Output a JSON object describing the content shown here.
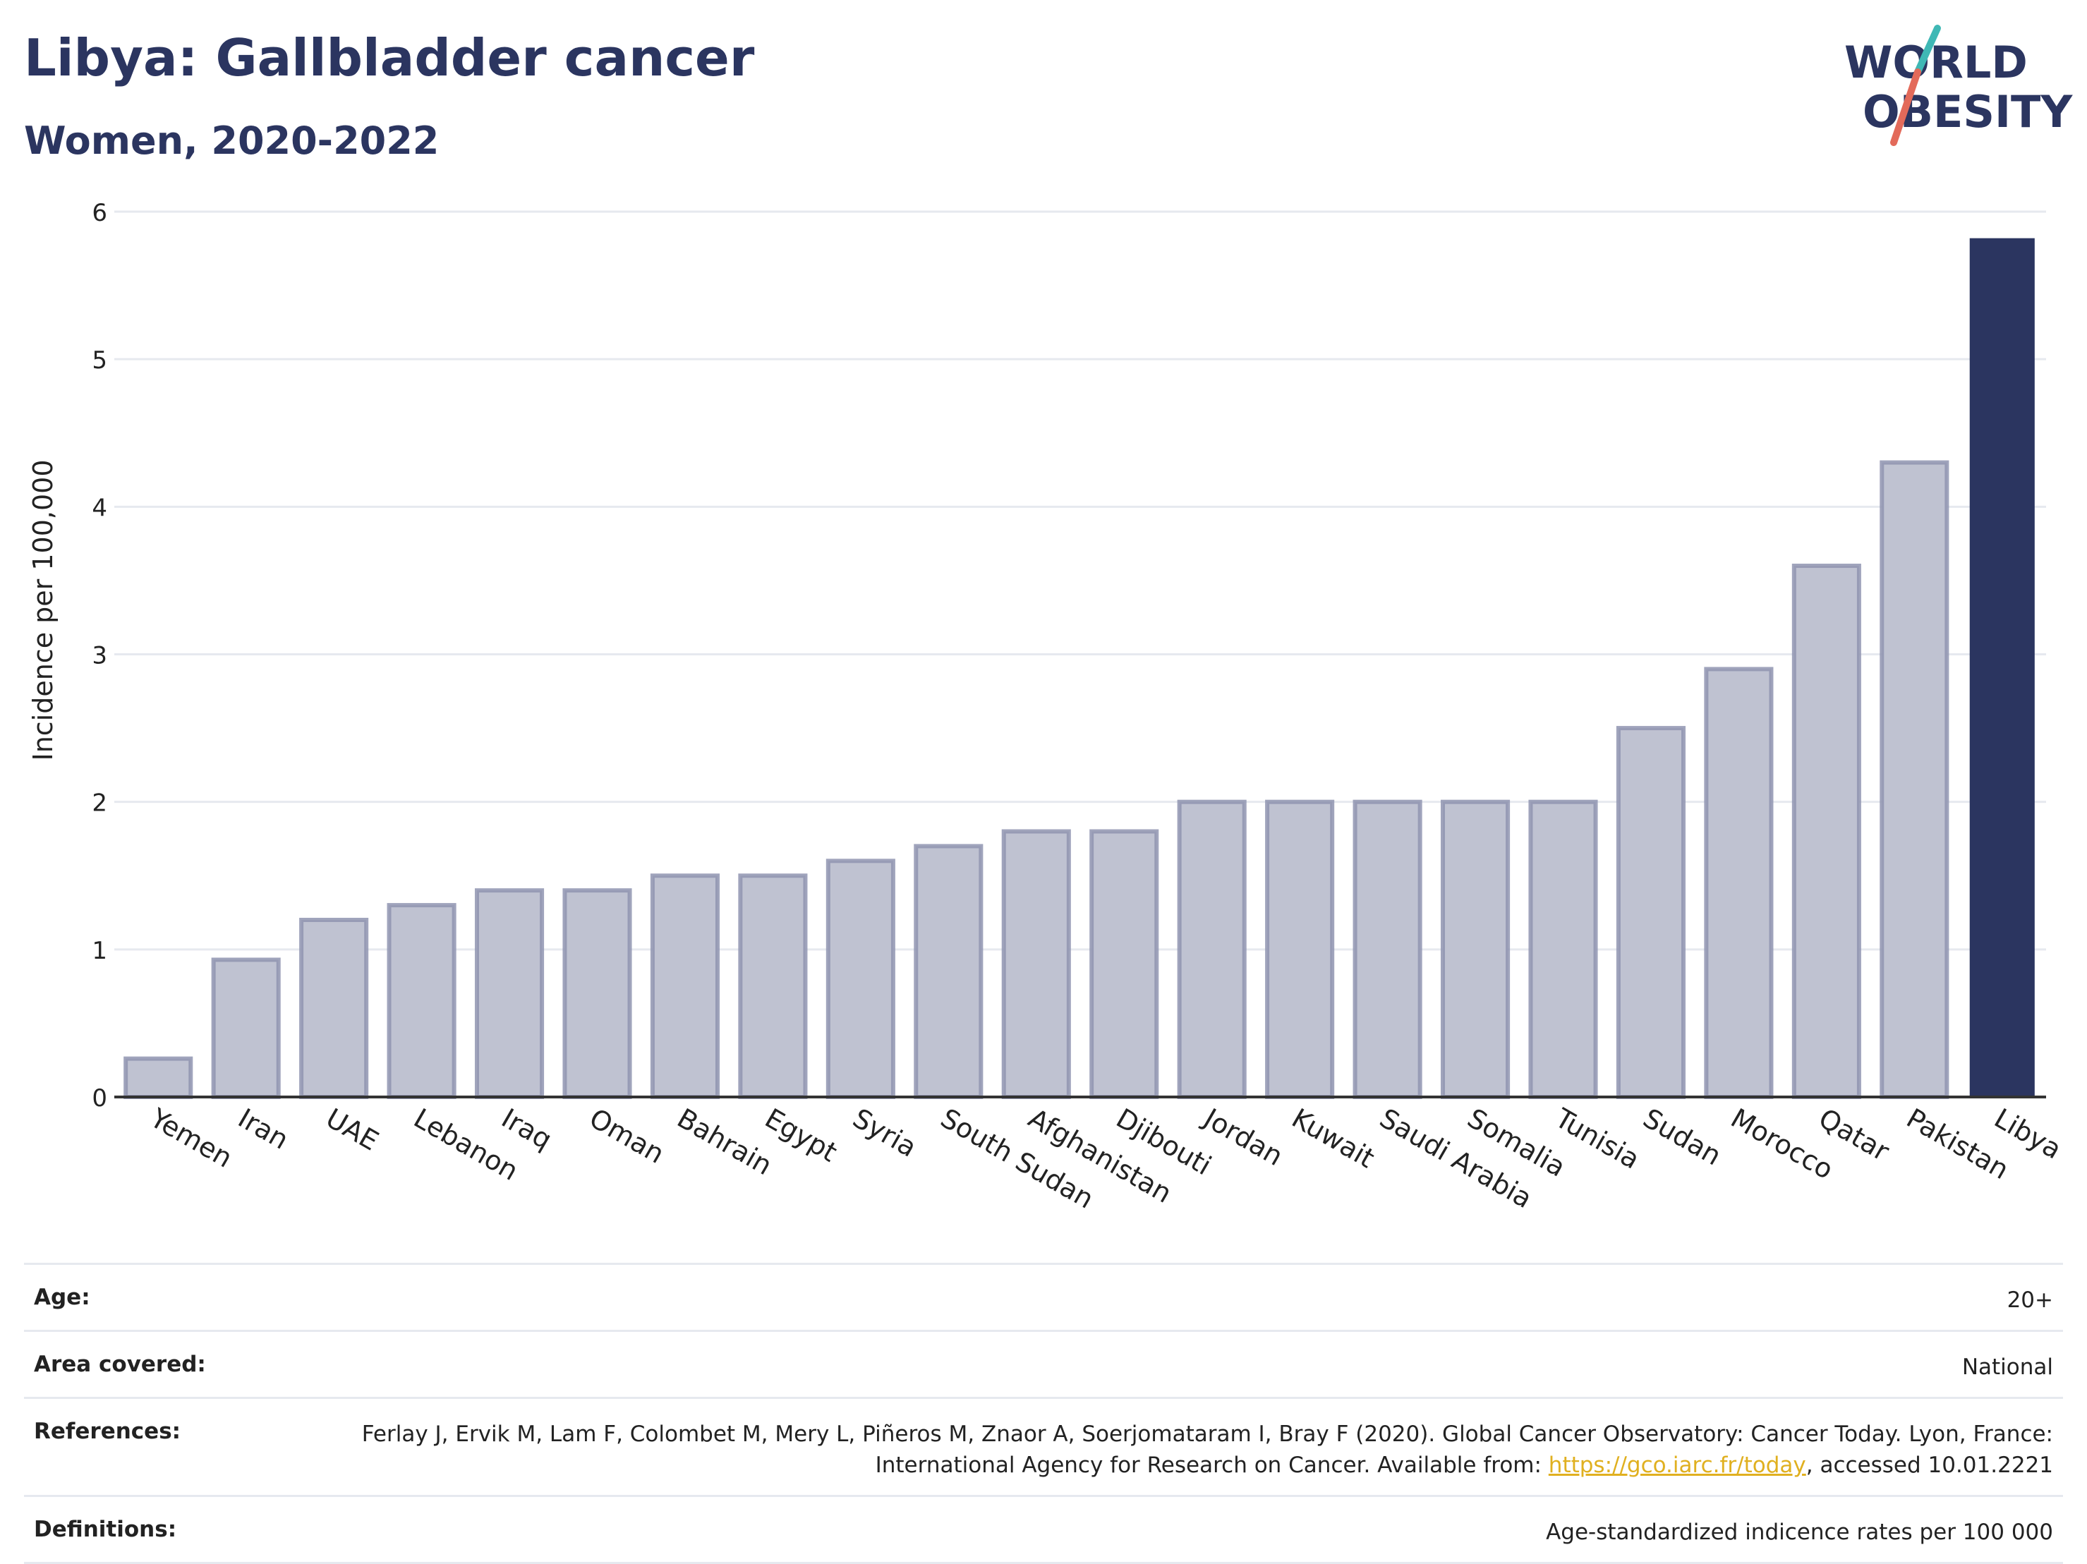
{
  "header": {
    "title": "Libya: Gallbladder cancer",
    "subtitle": "Women, 2020-2022"
  },
  "logo": {
    "line1": "WORLD",
    "line2": "OBESITY"
  },
  "chart_data": {
    "type": "bar",
    "ylabel": "Incidence per 100,000",
    "xlabel": "",
    "ylim": [
      0,
      6
    ],
    "yticks": [
      0,
      1,
      2,
      3,
      4,
      5,
      6
    ],
    "grid": true,
    "categories": [
      "Yemen",
      "Iran",
      "UAE",
      "Lebanon",
      "Iraq",
      "Oman",
      "Bahrain",
      "Egypt",
      "Syria",
      "South Sudan",
      "Afghanistan",
      "Djibouti",
      "Jordan",
      "Kuwait",
      "Saudi Arabia",
      "Somalia",
      "Tunisia",
      "Sudan",
      "Morocco",
      "Qatar",
      "Pakistan",
      "Libya"
    ],
    "values": [
      0.26,
      0.93,
      1.2,
      1.3,
      1.4,
      1.4,
      1.5,
      1.5,
      1.6,
      1.7,
      1.8,
      1.8,
      2.0,
      2.0,
      2.0,
      2.0,
      2.0,
      2.5,
      2.9,
      3.6,
      4.3,
      5.82
    ],
    "highlight": "Libya",
    "colors": {
      "bar": "#bfc2d1",
      "bar_edge": "#8f94b0",
      "highlight": "#2b3560",
      "grid": "#e6e9ef",
      "axis": "#333333"
    }
  },
  "meta": {
    "age": {
      "label": "Age:",
      "value": "20+"
    },
    "area": {
      "label": "Area covered:",
      "value": "National"
    },
    "references": {
      "label": "References:",
      "text_before": "Ferlay J, Ervik M, Lam F, Colombet M, Mery L, Piñeros M, Znaor A, Soerjomataram I, Bray F (2020). Global Cancer Observatory: Cancer Today. Lyon, France: International Agency for Research on Cancer. Available from: ",
      "link": "https://gco.iarc.fr/today",
      "text_after": ", accessed 10.01.2221"
    },
    "definitions": {
      "label": "Definitions:",
      "value": "Age-standardized indicence rates per 100 000"
    }
  }
}
